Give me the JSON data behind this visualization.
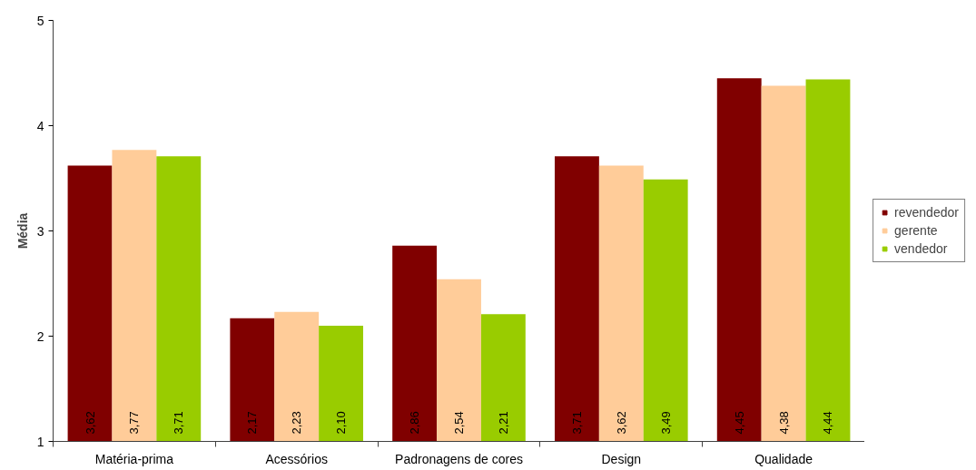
{
  "chart_data": {
    "type": "bar",
    "ylabel": "Média",
    "categories": [
      "Matéria-prima",
      "Acessórios",
      "Padronagens de cores",
      "Design",
      "Qualidade"
    ],
    "series": [
      {
        "name": "revendedor",
        "color": "#800000",
        "values": [
          3.62,
          2.17,
          2.86,
          3.71,
          4.45
        ],
        "value_labels": [
          "3,62",
          "2,17",
          "2,86",
          "3,71",
          "4,45"
        ]
      },
      {
        "name": "gerente",
        "color": "#ffcc99",
        "values": [
          3.77,
          2.23,
          2.54,
          3.62,
          4.38
        ],
        "value_labels": [
          "3,77",
          "2,23",
          "2,54",
          "3,62",
          "4,38"
        ]
      },
      {
        "name": "vendedor",
        "color": "#99cc00",
        "values": [
          3.71,
          2.1,
          2.21,
          3.49,
          4.44
        ],
        "value_labels": [
          "3,71",
          "2,10",
          "2,21",
          "3,49",
          "4,44"
        ]
      }
    ],
    "ylim": [
      1,
      5
    ],
    "yticks": [
      1,
      2,
      3,
      4,
      5
    ],
    "grid": false,
    "legend": "right"
  }
}
